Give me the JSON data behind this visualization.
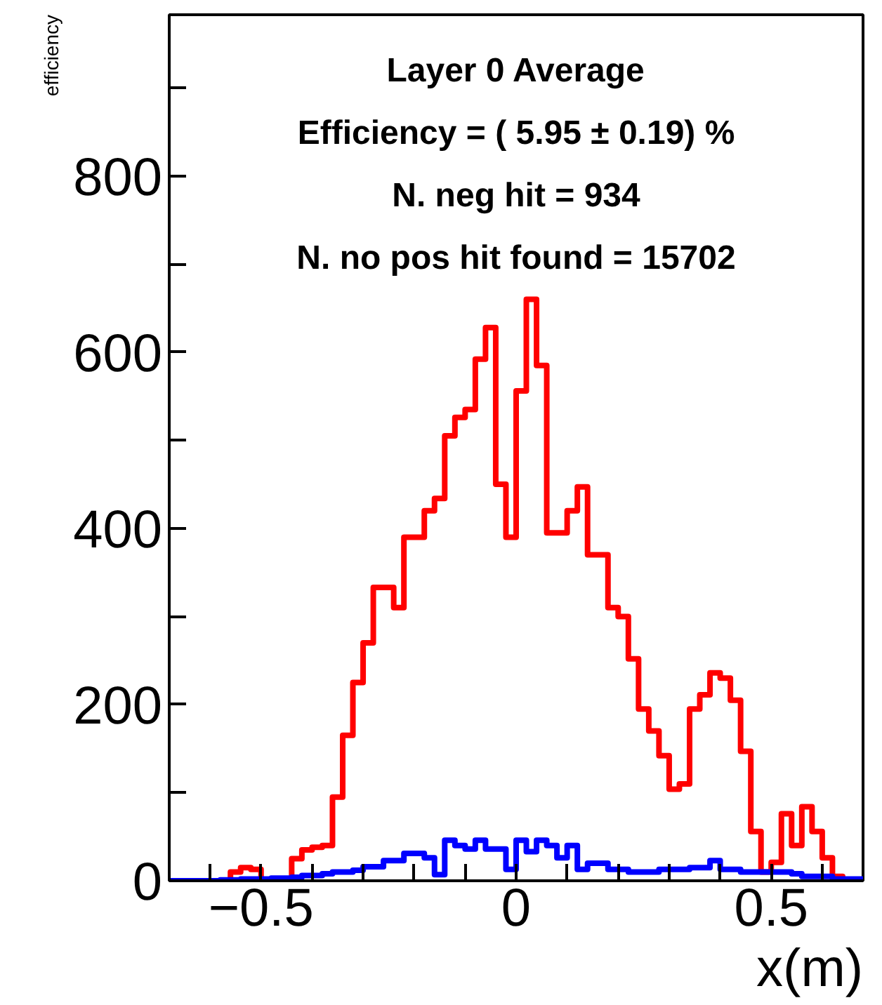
{
  "chart_data": {
    "type": "histogram",
    "annotations": [
      "Layer 0 Average",
      "Efficiency = ( 5.95 ± 0.19) %",
      "N. neg hit = 934",
      "N. no pos hit found = 15702"
    ],
    "xlabel": "x(m)",
    "ylabel": "efficiency",
    "bins": [
      -0.68,
      -0.66,
      -0.64,
      -0.62,
      -0.6,
      -0.58,
      -0.56,
      -0.54,
      -0.52,
      -0.5,
      -0.48,
      -0.46,
      -0.44,
      -0.42,
      -0.4,
      -0.38,
      -0.36,
      -0.34,
      -0.32,
      -0.3,
      -0.28,
      -0.26,
      -0.24,
      -0.22,
      -0.2,
      -0.18,
      -0.16,
      -0.14,
      -0.12,
      -0.1,
      -0.08,
      -0.06,
      -0.04,
      -0.02,
      0,
      0.02,
      0.04,
      0.06,
      0.08,
      0.1,
      0.12,
      0.14,
      0.16,
      0.18,
      0.2,
      0.22,
      0.24,
      0.26,
      0.28,
      0.3,
      0.32,
      0.34,
      0.36,
      0.38,
      0.4,
      0.42,
      0.44,
      0.46,
      0.48,
      0.5,
      0.52,
      0.54,
      0.56,
      0.58,
      0.6,
      0.62,
      0.64,
      0.66,
      0.68
    ],
    "series": [
      {
        "color": "#ff0000",
        "values": [
          0,
          0,
          0,
          0,
          0,
          0,
          10,
          15,
          13,
          0,
          0,
          0,
          25,
          35,
          38,
          40,
          95,
          165,
          225,
          270,
          333,
          333,
          310,
          390,
          390,
          420,
          434,
          505,
          526,
          535,
          592,
          628,
          450,
          390,
          556,
          660,
          585,
          395,
          395,
          420,
          447,
          370,
          370,
          310,
          300,
          252,
          195,
          170,
          142,
          104,
          110,
          195,
          211,
          236,
          230,
          205,
          147,
          56,
          10,
          21,
          76,
          40,
          84,
          56,
          26,
          5,
          0,
          0
        ]
      },
      {
        "color": "#0000ff",
        "values": [
          0,
          0,
          0,
          0,
          0,
          1,
          1,
          2,
          2,
          2,
          3,
          3,
          4,
          6,
          6,
          8,
          10,
          10,
          12,
          16,
          16,
          23,
          23,
          31,
          31,
          26,
          7,
          46,
          40,
          36,
          46,
          36,
          36,
          13,
          46,
          33,
          46,
          40,
          26,
          40,
          13,
          20,
          20,
          13,
          13,
          10,
          10,
          10,
          13,
          13,
          13,
          15,
          15,
          23,
          13,
          13,
          10,
          10,
          10,
          10,
          10,
          8,
          5,
          5,
          5,
          2,
          2,
          2
        ]
      }
    ],
    "xlim": [
      -0.68,
      0.68
    ],
    "ylim": [
      0,
      983
    ],
    "xticks": [
      {
        "value": -0.6,
        "label": null
      },
      -0.5,
      {
        "value": -0.4,
        "label": null
      },
      {
        "value": -0.3,
        "label": null
      },
      {
        "value": -0.2,
        "label": null
      },
      {
        "value": -0.1,
        "label": null
      },
      0,
      {
        "value": 0.1,
        "label": null
      },
      {
        "value": 0.2,
        "label": null
      },
      {
        "value": 0.3,
        "label": null
      },
      {
        "value": 0.4,
        "label": null
      },
      0.5,
      {
        "value": 0.6,
        "label": null
      }
    ],
    "yticks": [
      0,
      {
        "value": 100,
        "label": null
      },
      200,
      {
        "value": 300,
        "label": null
      },
      400,
      {
        "value": 500,
        "label": null
      },
      600,
      {
        "value": 700,
        "label": null
      },
      800,
      {
        "value": 900,
        "label": null
      }
    ],
    "grid": false
  }
}
